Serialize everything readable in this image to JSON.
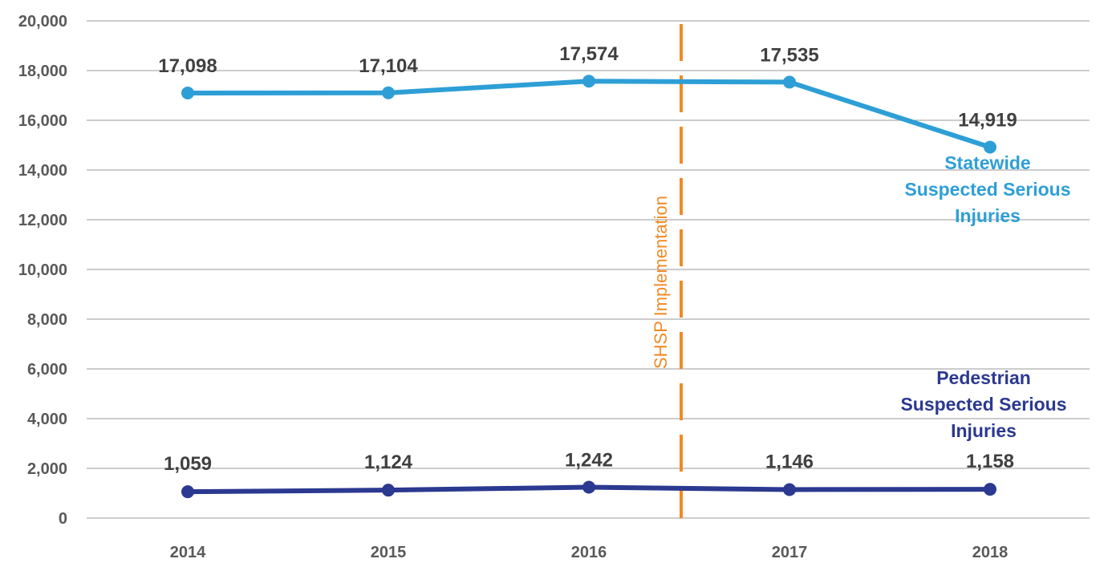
{
  "chart_data": {
    "type": "line",
    "title": "",
    "xlabel": "",
    "ylabel": "",
    "categories": [
      "2014",
      "2015",
      "2016",
      "2017",
      "2018"
    ],
    "ylim": [
      0,
      20000
    ],
    "yticks": [
      0,
      2000,
      4000,
      6000,
      8000,
      10000,
      12000,
      14000,
      16000,
      18000,
      20000
    ],
    "ytick_labels": [
      "0",
      "2,000",
      "4,000",
      "6,000",
      "8,000",
      "10,000",
      "12,000",
      "14,000",
      "16,000",
      "18,000",
      "20,000"
    ],
    "grid": true,
    "series": [
      {
        "key": "statewide",
        "name_lines": [
          "Statewide",
          "Suspected Serious",
          "Injuries"
        ],
        "color": "#2E9FD6",
        "values": [
          17098,
          17104,
          17574,
          17535,
          14919
        ],
        "labels": [
          "17,098",
          "17,104",
          "17,574",
          "17,535",
          "14,919"
        ]
      },
      {
        "key": "pedestrian",
        "name_lines": [
          "Pedestrian",
          "Suspected Serious",
          "Injuries"
        ],
        "color": "#2B3990",
        "values": [
          1059,
          1124,
          1242,
          1146,
          1158
        ],
        "labels": [
          "1,059",
          "1,124",
          "1,242",
          "1,146",
          "1,158"
        ]
      }
    ],
    "annotation": {
      "text": "SHSP Implementation",
      "x_position": 2016.46,
      "color": "#F08A24",
      "style": "dashed vertical line"
    }
  }
}
